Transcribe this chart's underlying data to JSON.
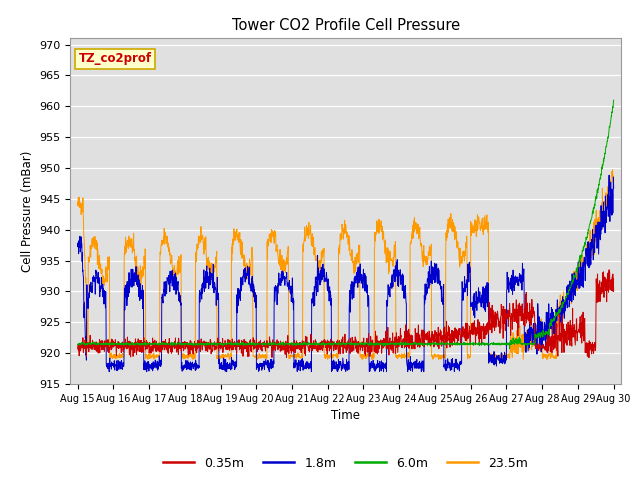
{
  "title": "Tower CO2 Profile Cell Pressure",
  "ylabel": "Cell Pressure (mBar)",
  "xlabel": "Time",
  "ylim": [
    915,
    971
  ],
  "yticks": [
    915,
    920,
    925,
    930,
    935,
    940,
    945,
    950,
    955,
    960,
    965,
    970
  ],
  "bg_color": "#e0e0e0",
  "line_colors": {
    "0.35m": "#cc0000",
    "1.8m": "#0000cc",
    "6.0m": "#00aa00",
    "23.5m": "#ff9900"
  },
  "legend_label": "TZ_co2prof",
  "legend_text_color": "#cc0000",
  "legend_box_color": "#ffffcc",
  "legend_box_edge": "#ccaa00",
  "figsize": [
    6.4,
    4.8
  ],
  "dpi": 100
}
